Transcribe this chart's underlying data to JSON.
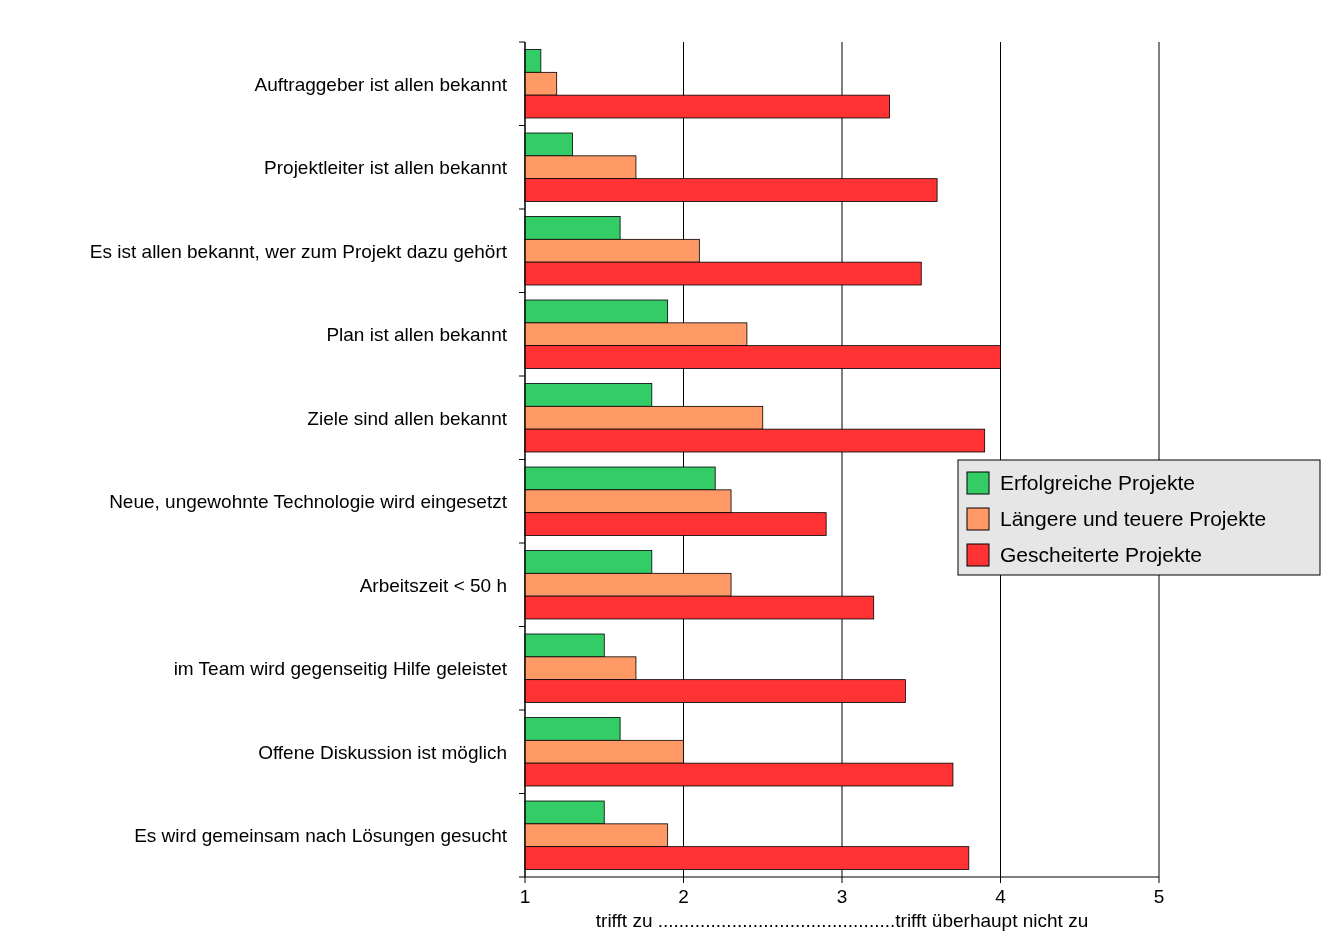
{
  "chart_data": {
    "type": "bar",
    "orientation": "horizontal",
    "categories": [
      "Auftraggeber ist allen bekannt",
      "Projektleiter ist allen bekannt",
      "Es ist allen bekannt, wer zum Projekt dazu gehört",
      "Plan ist allen bekannt",
      "Ziele sind allen bekannt",
      "Neue, ungewohnte Technologie wird eingesetzt",
      "Arbeitszeit < 50 h",
      "im Team wird gegenseitig Hilfe geleistet",
      "Offene Diskussion ist möglich",
      "Es wird gemeinsam nach Lösungen gesucht"
    ],
    "series": [
      {
        "name": "Erfolgreiche Projekte",
        "color": "#33cc66",
        "values": [
          1.1,
          1.3,
          1.6,
          1.9,
          1.8,
          2.2,
          1.8,
          1.5,
          1.6,
          1.5
        ]
      },
      {
        "name": "Längere und teuere Projekte",
        "color": "#ff9966",
        "values": [
          1.2,
          1.7,
          2.1,
          2.4,
          2.5,
          2.3,
          2.3,
          1.7,
          2.0,
          1.9
        ]
      },
      {
        "name": "Gescheiterte Projekte",
        "color": "#ff3333",
        "values": [
          3.3,
          3.6,
          3.5,
          4.0,
          3.9,
          2.9,
          3.2,
          3.4,
          3.7,
          3.8
        ]
      }
    ],
    "xlim": [
      1,
      5
    ],
    "xticks": [
      1,
      2,
      3,
      4,
      5
    ],
    "xlabel": "trifft zu .............................................trifft überhaupt nicht zu",
    "grid": "x",
    "legend": "right"
  }
}
